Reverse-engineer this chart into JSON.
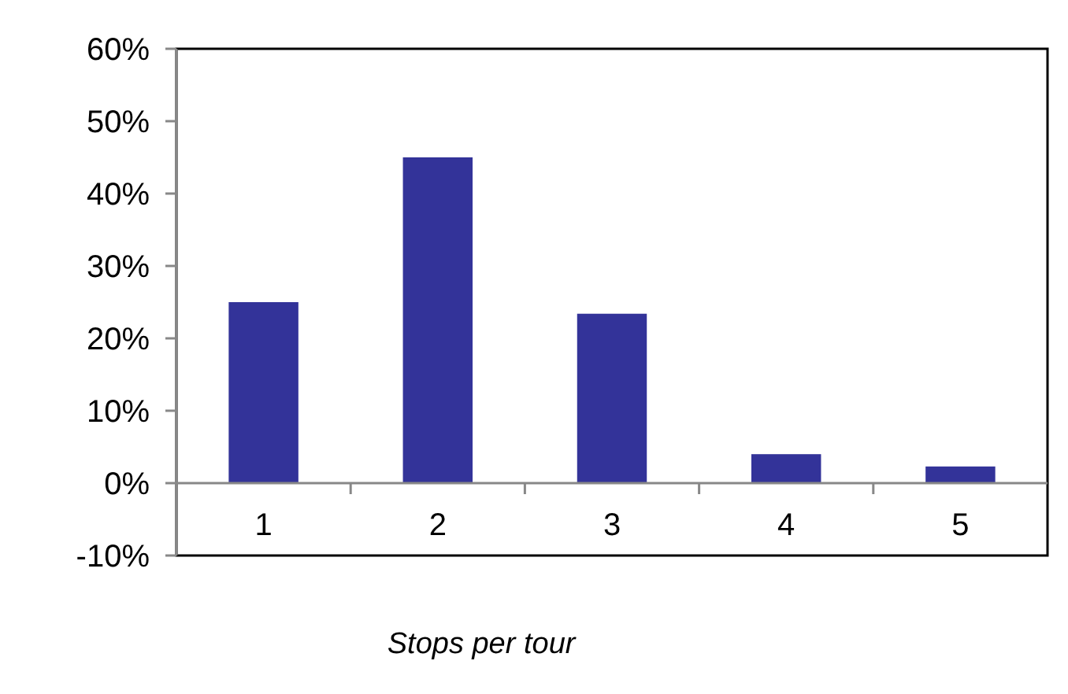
{
  "chart_data": {
    "type": "bar",
    "xlabel": "Stops per tour",
    "categories": [
      "1",
      "2",
      "3",
      "4",
      "5"
    ],
    "values": [
      25,
      45,
      23.4,
      4,
      2.3
    ],
    "color": "#333399",
    "ylim": [
      -10,
      60
    ],
    "yticks": [
      {
        "value": -10,
        "label": "-10%"
      },
      {
        "value": 0,
        "label": "0%"
      },
      {
        "value": 10,
        "label": "10%"
      },
      {
        "value": 20,
        "label": "20%"
      },
      {
        "value": 30,
        "label": "30%"
      },
      {
        "value": 40,
        "label": "40%"
      },
      {
        "value": 50,
        "label": "50%"
      },
      {
        "value": 60,
        "label": "60%"
      }
    ]
  }
}
